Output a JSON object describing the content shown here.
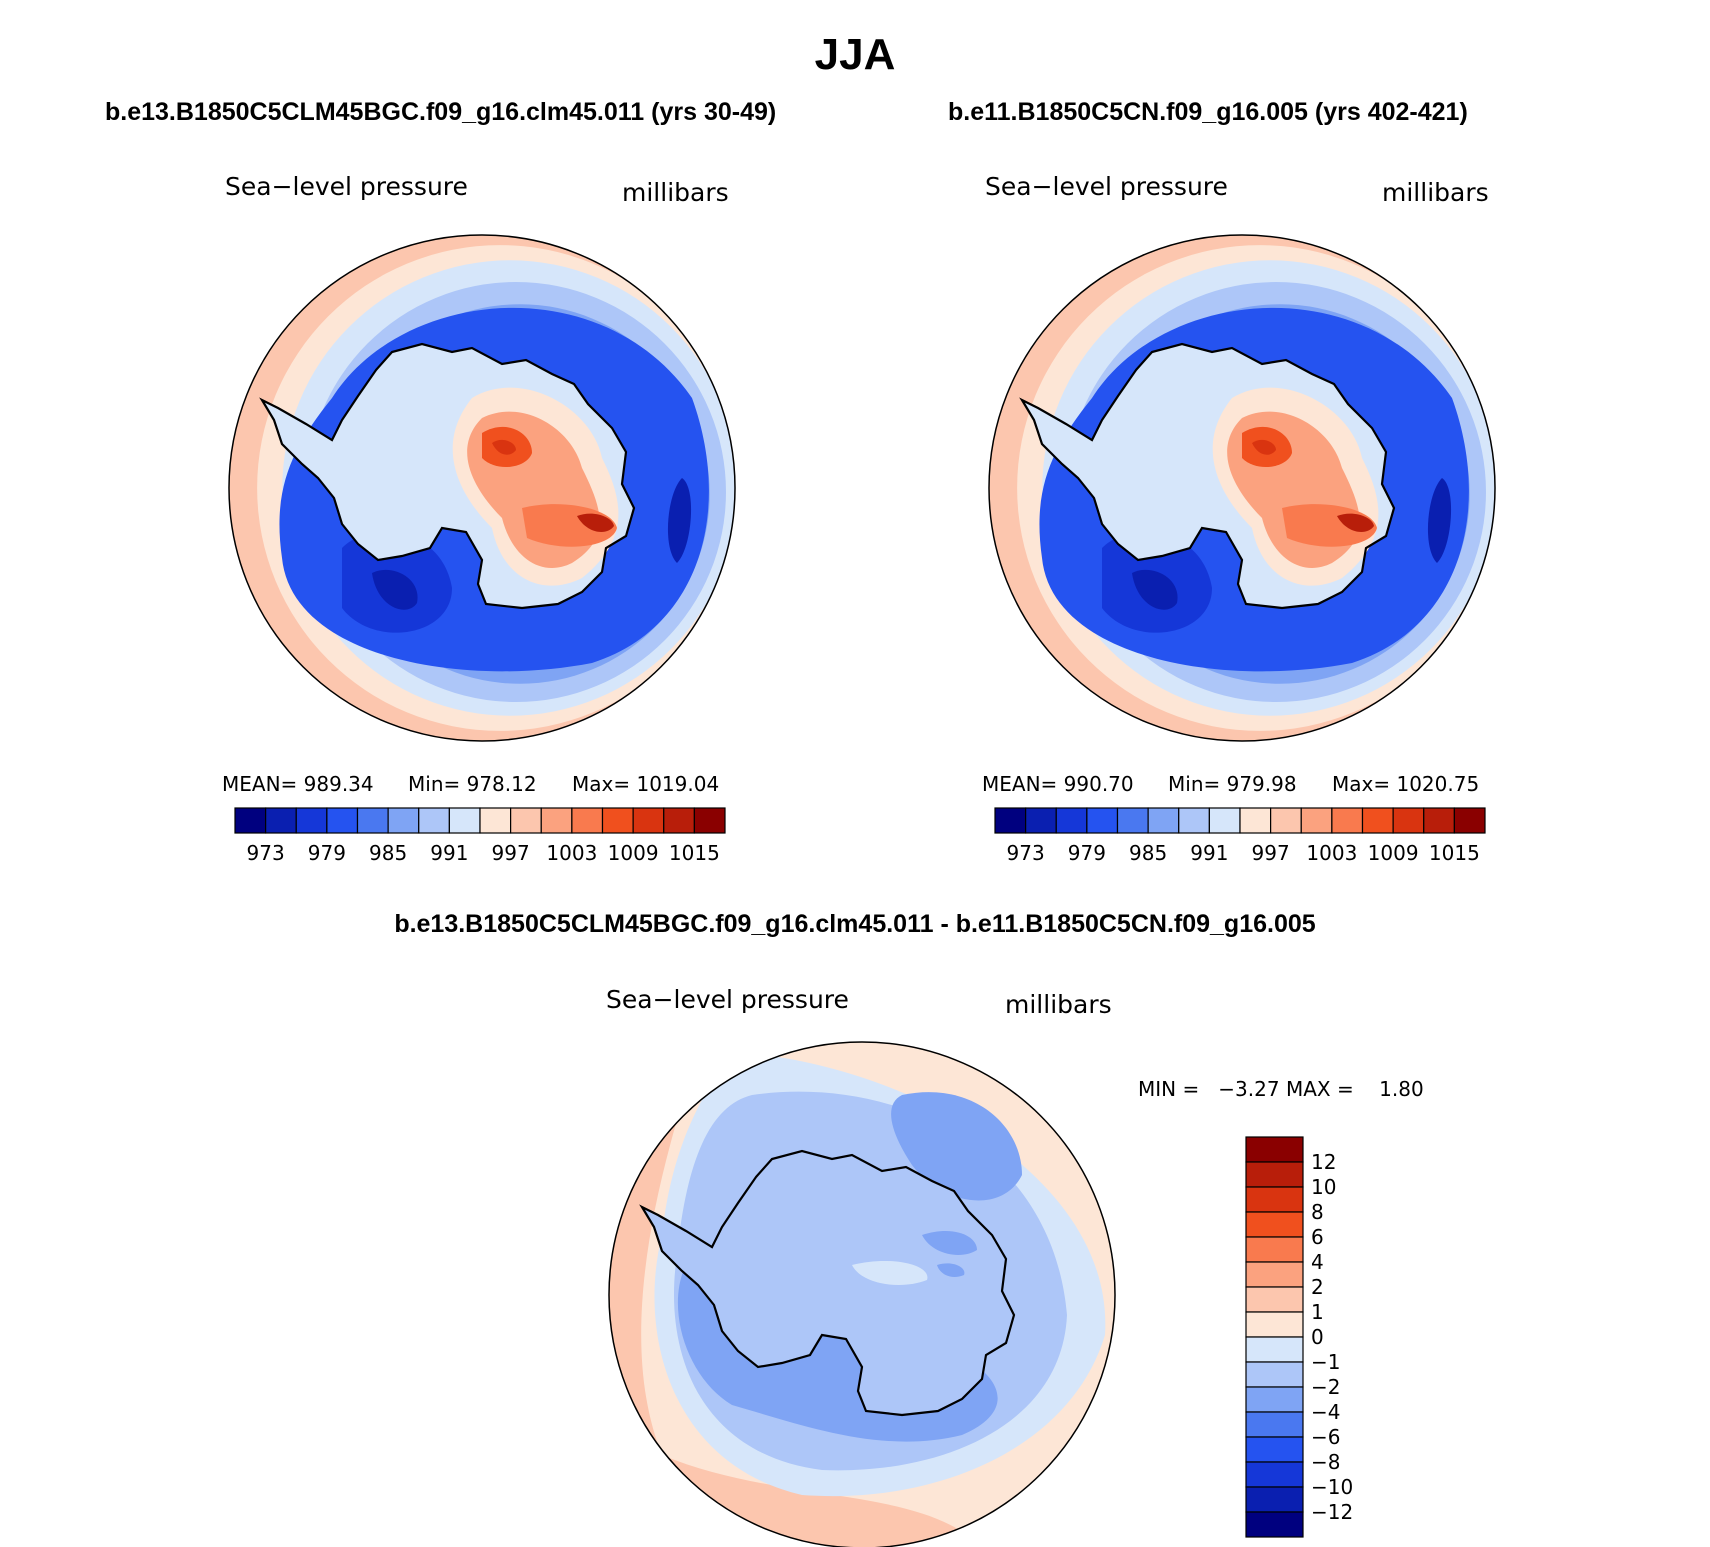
{
  "page": {
    "title": "JJA"
  },
  "colors": {
    "palette": [
      "#00007f",
      "#0a1fb0",
      "#1537d8",
      "#2553f0",
      "#4a78f0",
      "#7fa4f4",
      "#adc6f8",
      "#d6e6fa",
      "#fde6d6",
      "#fcc6ae",
      "#fba27f",
      "#f97a4e",
      "#f0501e",
      "#d93410",
      "#b81e0a",
      "#8a0000"
    ],
    "coast": "#000000"
  },
  "chart_data": [
    {
      "type": "heatmap",
      "id": "panel-left",
      "title": "b.e13.B1850C5CLM45BGC.f09_g16.clm45.011 (yrs 30-49)",
      "left_label": "Sea−level pressure",
      "right_label": "millibars",
      "stats": {
        "mean": "MEAN= 989.34",
        "min": "Min= 978.12",
        "max": "Max= 1019.04"
      },
      "colorbar_ticks": [
        "973",
        "979",
        "985",
        "991",
        "997",
        "1003",
        "1009",
        "1015"
      ],
      "contour_levels": [
        973,
        976,
        979,
        982,
        985,
        988,
        991,
        994,
        997,
        1000,
        1003,
        1006,
        1009,
        1012,
        1015
      ]
    },
    {
      "type": "heatmap",
      "id": "panel-right",
      "title": "b.e11.B1850C5CN.f09_g16.005 (yrs 402-421)",
      "left_label": "Sea−level pressure",
      "right_label": "millibars",
      "stats": {
        "mean": "MEAN= 990.70",
        "min": "Min= 979.98",
        "max": "Max= 1020.75"
      },
      "colorbar_ticks": [
        "973",
        "979",
        "985",
        "991",
        "997",
        "1003",
        "1009",
        "1015"
      ],
      "contour_levels": [
        973,
        976,
        979,
        982,
        985,
        988,
        991,
        994,
        997,
        1000,
        1003,
        1006,
        1009,
        1012,
        1015
      ]
    },
    {
      "type": "heatmap",
      "id": "panel-diff",
      "title": "b.e13.B1850C5CLM45BGC.f09_g16.clm45.011 - b.e11.B1850C5CN.f09_g16.005",
      "left_label": "Sea−level pressure",
      "right_label": "millibars",
      "stats": {
        "minmax": "MIN =   −3.27 MAX =    1.80"
      },
      "colorbar_ticks": [
        "12",
        "10",
        "8",
        "6",
        "4",
        "2",
        "1",
        "0",
        "−1",
        "−2",
        "−4",
        "−6",
        "−8",
        "−10",
        "−12"
      ],
      "contour_levels": [
        -12,
        -10,
        -8,
        -6,
        -4,
        -2,
        -1,
        0,
        1,
        2,
        4,
        6,
        8,
        10,
        12
      ]
    }
  ]
}
